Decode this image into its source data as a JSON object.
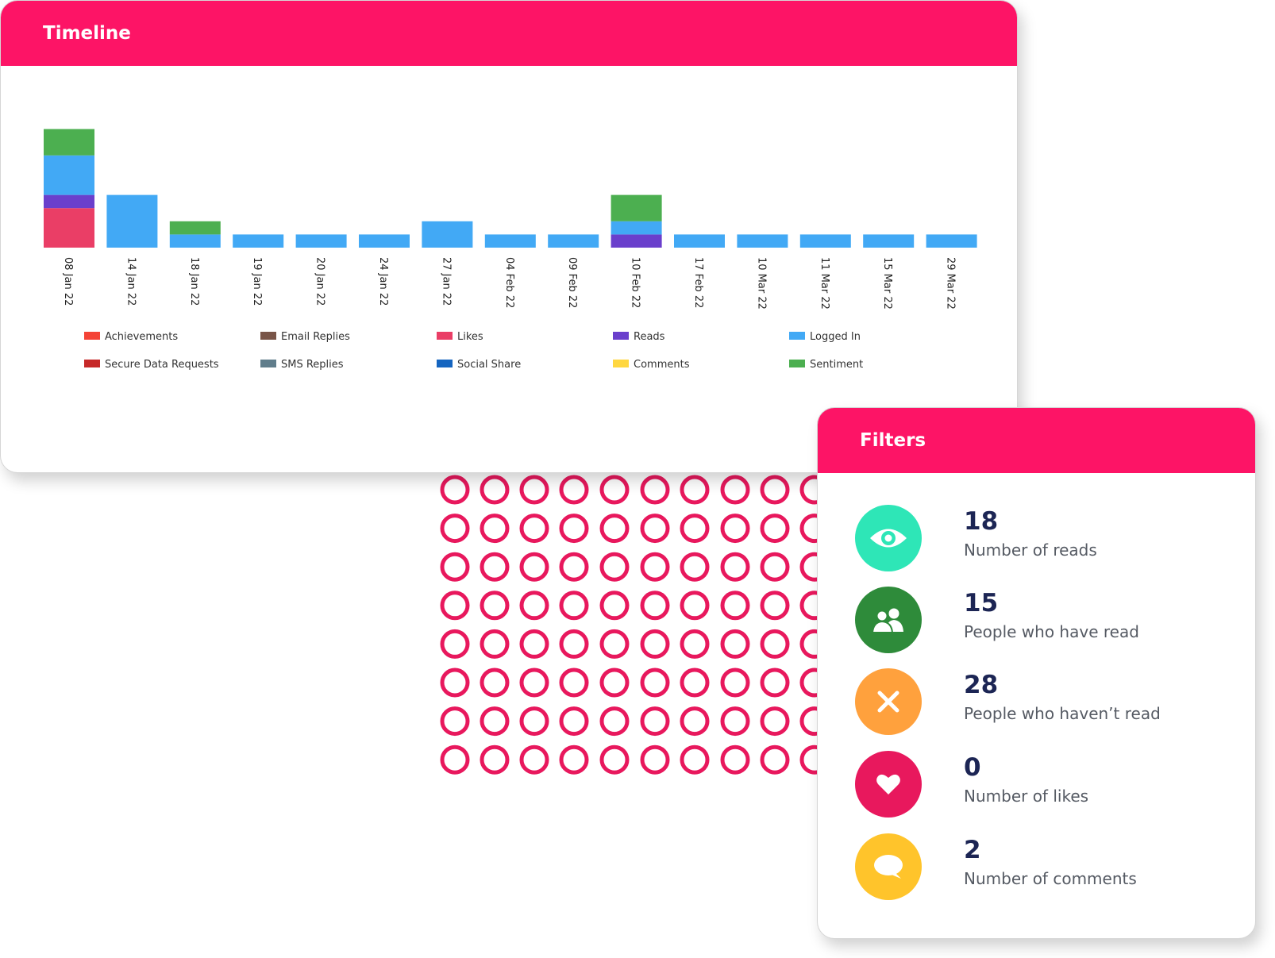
{
  "colors": {
    "brand": "#fd1466",
    "dots": "#e8185d",
    "stat_value": "#1c2554"
  },
  "timeline": {
    "title": "Timeline"
  },
  "chart_data": {
    "type": "bar",
    "stacked": true,
    "categories": [
      "08 Jan 22",
      "14 Jan 22",
      "18 Jan 22",
      "19 Jan 22",
      "20 Jan 22",
      "24 Jan 22",
      "27 Jan 22",
      "04 Feb 22",
      "09 Feb 22",
      "10 Feb 22",
      "17 Feb 22",
      "10 Mar 22",
      "11 Mar 22",
      "15 Mar 22",
      "29 Mar 22"
    ],
    "series": [
      {
        "name": "Achievements",
        "color": "#f44336",
        "values": [
          0,
          0,
          0,
          0,
          0,
          0,
          0,
          0,
          0,
          0,
          0,
          0,
          0,
          0,
          0
        ]
      },
      {
        "name": "Email Replies",
        "color": "#795548",
        "values": [
          0,
          0,
          0,
          0,
          0,
          0,
          0,
          0,
          0,
          0,
          0,
          0,
          0,
          0,
          0
        ]
      },
      {
        "name": "Likes",
        "color": "#ea3e66",
        "values": [
          3,
          0,
          0,
          0,
          0,
          0,
          0,
          0,
          0,
          0,
          0,
          0,
          0,
          0,
          0
        ]
      },
      {
        "name": "Reads",
        "color": "#6a3fcc",
        "values": [
          1,
          0,
          0,
          0,
          0,
          0,
          0,
          0,
          0,
          1,
          0,
          0,
          0,
          0,
          0
        ]
      },
      {
        "name": "Logged In",
        "color": "#42a9f5",
        "values": [
          3,
          4,
          1,
          1,
          1,
          1,
          2,
          1,
          1,
          1,
          1,
          1,
          1,
          1,
          1
        ]
      },
      {
        "name": "Secure Data Requests",
        "color": "#c62828",
        "values": [
          0,
          0,
          0,
          0,
          0,
          0,
          0,
          0,
          0,
          0,
          0,
          0,
          0,
          0,
          0
        ]
      },
      {
        "name": "SMS Replies",
        "color": "#607d8b",
        "values": [
          0,
          0,
          0,
          0,
          0,
          0,
          0,
          0,
          0,
          0,
          0,
          0,
          0,
          0,
          0
        ]
      },
      {
        "name": "Social Share",
        "color": "#1565c0",
        "values": [
          0,
          0,
          0,
          0,
          0,
          0,
          0,
          0,
          0,
          0,
          0,
          0,
          0,
          0,
          0
        ]
      },
      {
        "name": "Comments",
        "color": "#ffd740",
        "values": [
          0,
          0,
          0,
          0,
          0,
          0,
          0,
          0,
          0,
          0,
          0,
          0,
          0,
          0,
          0
        ]
      },
      {
        "name": "Sentiment",
        "color": "#4caf50",
        "values": [
          2,
          0,
          1,
          0,
          0,
          0,
          0,
          0,
          0,
          2,
          0,
          0,
          0,
          0,
          0
        ]
      }
    ],
    "legend_position": "bottom",
    "grid": false,
    "ylim": [
      0,
      9
    ]
  },
  "filters": {
    "title": "Filters",
    "items": [
      {
        "value": "18",
        "label": "Number of reads",
        "icon": "eye-icon",
        "color": "#2ee6b7"
      },
      {
        "value": "15",
        "label": "People who have read",
        "icon": "people-icon",
        "color": "#2e8b3a"
      },
      {
        "value": "28",
        "label": "People who haven’t read",
        "icon": "close-icon",
        "color": "#ffa13d"
      },
      {
        "value": "0",
        "label": "Number of likes",
        "icon": "heart-icon",
        "color": "#e8185d"
      },
      {
        "value": "2",
        "label": "Number of comments",
        "icon": "speech-bubble-icon",
        "color": "#ffc42b"
      }
    ]
  }
}
